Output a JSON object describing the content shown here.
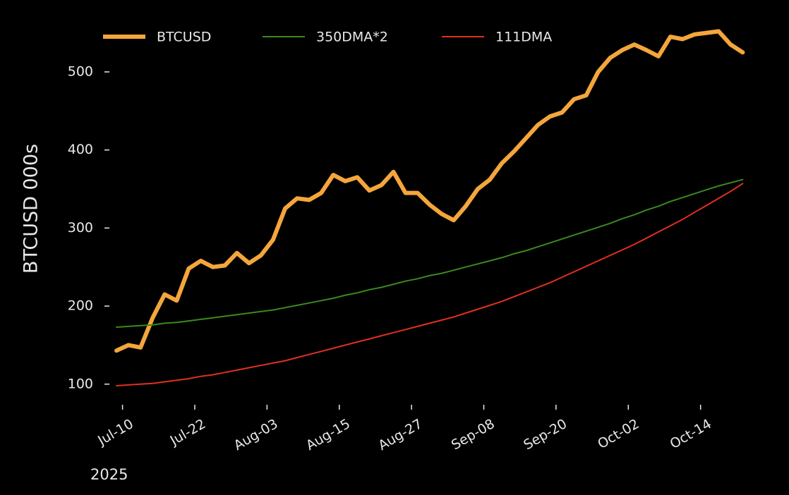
{
  "chart_data": {
    "type": "line",
    "y_label": "BTCUSD 000s",
    "x_year_label": "2025",
    "x": [
      "2025-07-09",
      "2025-07-11",
      "2025-07-13",
      "2025-07-15",
      "2025-07-17",
      "2025-07-19",
      "2025-07-21",
      "2025-07-23",
      "2025-07-25",
      "2025-07-27",
      "2025-07-29",
      "2025-07-31",
      "2025-08-02",
      "2025-08-04",
      "2025-08-06",
      "2025-08-08",
      "2025-08-10",
      "2025-08-12",
      "2025-08-14",
      "2025-08-16",
      "2025-08-18",
      "2025-08-20",
      "2025-08-22",
      "2025-08-24",
      "2025-08-26",
      "2025-08-28",
      "2025-08-30",
      "2025-09-01",
      "2025-09-03",
      "2025-09-05",
      "2025-09-07",
      "2025-09-09",
      "2025-09-11",
      "2025-09-13",
      "2025-09-15",
      "2025-09-17",
      "2025-09-19",
      "2025-09-21",
      "2025-09-23",
      "2025-09-25",
      "2025-09-27",
      "2025-09-29",
      "2025-10-01",
      "2025-10-03",
      "2025-10-05",
      "2025-10-07",
      "2025-10-09",
      "2025-10-11",
      "2025-10-13",
      "2025-10-15",
      "2025-10-17",
      "2025-10-19",
      "2025-10-21"
    ],
    "series": [
      {
        "name": "BTCUSD",
        "color": "#f4a63c",
        "width": 6,
        "values": [
          143,
          150,
          147,
          185,
          215,
          207,
          248,
          258,
          250,
          252,
          268,
          255,
          265,
          285,
          325,
          338,
          336,
          345,
          368,
          360,
          365,
          348,
          355,
          372,
          345,
          345,
          330,
          318,
          310,
          328,
          350,
          362,
          383,
          398,
          415,
          432,
          443,
          448,
          465,
          470,
          500,
          518,
          528,
          535,
          528,
          520,
          545,
          542,
          548,
          550,
          552,
          535,
          525
        ]
      },
      {
        "name": "350DMA*2",
        "color": "#3a8a1e",
        "width": 2,
        "values": [
          173,
          174,
          175,
          176,
          178,
          179,
          181,
          183,
          185,
          187,
          189,
          191,
          193,
          195,
          198,
          201,
          204,
          207,
          210,
          214,
          217,
          221,
          224,
          228,
          232,
          235,
          239,
          242,
          246,
          250,
          254,
          258,
          262,
          267,
          271,
          276,
          281,
          286,
          291,
          296,
          301,
          306,
          312,
          317,
          323,
          328,
          334,
          339,
          344,
          349,
          354,
          358,
          362
        ]
      },
      {
        "name": "111DMA",
        "color": "#e0301e",
        "width": 2,
        "values": [
          98,
          99,
          100,
          101,
          103,
          105,
          107,
          110,
          112,
          115,
          118,
          121,
          124,
          127,
          130,
          134,
          138,
          142,
          146,
          150,
          154,
          158,
          162,
          166,
          170,
          174,
          178,
          182,
          186,
          191,
          196,
          201,
          206,
          212,
          218,
          224,
          230,
          237,
          244,
          251,
          258,
          265,
          272,
          279,
          287,
          295,
          303,
          311,
          320,
          329,
          338,
          347,
          357
        ]
      }
    ],
    "xlim": [
      "2025-07-07",
      "2025-10-24"
    ],
    "xticks": [
      {
        "value": "2025-07-10",
        "label": "Jul-10"
      },
      {
        "value": "2025-07-22",
        "label": "Jul-22"
      },
      {
        "value": "2025-08-03",
        "label": "Aug-03"
      },
      {
        "value": "2025-08-15",
        "label": "Aug-15"
      },
      {
        "value": "2025-08-27",
        "label": "Aug-27"
      },
      {
        "value": "2025-09-08",
        "label": "Sep-08"
      },
      {
        "value": "2025-09-20",
        "label": "Sep-20"
      },
      {
        "value": "2025-10-02",
        "label": "Oct-02"
      },
      {
        "value": "2025-10-14",
        "label": "Oct-14"
      }
    ],
    "ylim": [
      70,
      565
    ],
    "yticks": [
      100,
      200,
      300,
      400,
      500
    ],
    "grid": false,
    "legend": "top-left",
    "background": "#000000"
  }
}
